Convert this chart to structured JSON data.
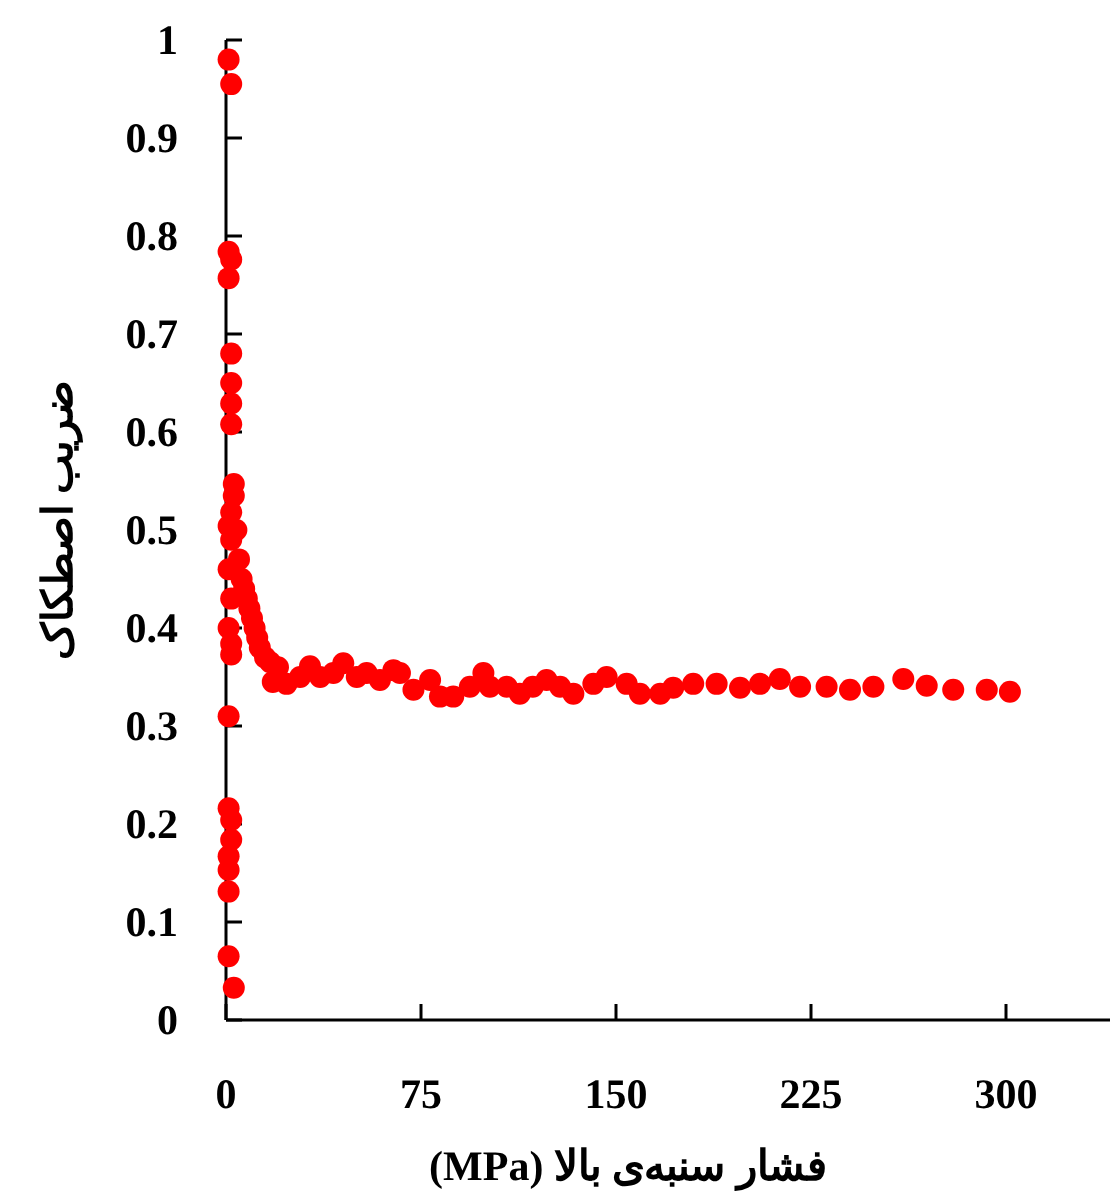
{
  "chart_data": {
    "type": "scatter",
    "xlabel": "فشار سنبه‌ی بالا (MPa)",
    "ylabel": "ضریب اصطکاک",
    "xlim": [
      0,
      340
    ],
    "ylim": [
      0,
      1
    ],
    "xticks": [
      0,
      75,
      150,
      225,
      300
    ],
    "yticks": [
      0,
      0.1,
      0.2,
      0.3,
      0.4,
      0.5,
      0.6,
      0.7,
      0.8,
      0.9,
      1
    ],
    "grid": false,
    "marker": "circle",
    "series": [
      {
        "color": "#ff0000",
        "x": [
          1,
          2,
          1,
          2,
          1,
          2,
          2,
          2,
          2,
          3,
          3,
          2,
          1,
          2,
          1,
          2,
          1,
          2,
          2,
          1,
          1,
          2,
          2,
          1,
          1,
          1,
          1,
          3,
          4,
          5,
          6,
          7,
          8,
          9,
          10,
          11,
          12,
          13,
          15,
          17,
          18,
          20,
          23.3,
          28.5,
          32.3,
          36.2,
          41.3,
          45.1,
          50.3,
          54.1,
          59.2,
          64.4,
          66.9,
          72.1,
          78.5,
          82.3,
          87.4,
          93.8,
          99,
          101.5,
          108,
          113,
          118,
          123.3,
          128.5,
          133.6,
          141.3,
          146.4,
          154.1,
          159.2,
          167,
          172,
          179.7,
          188.7,
          197.7,
          205.4,
          213,
          220.8,
          231,
          240,
          249,
          260.5,
          269.5,
          279.7,
          292.6,
          301.5
        ],
        "values": [
          0.98,
          0.955,
          0.784,
          0.776,
          0.757,
          0.68,
          0.65,
          0.629,
          0.608,
          0.547,
          0.535,
          0.518,
          0.504,
          0.49,
          0.46,
          0.43,
          0.4,
          0.384,
          0.373,
          0.31,
          0.216,
          0.204,
          0.184,
          0.167,
          0.153,
          0.131,
          0.065,
          0.033,
          0.5,
          0.47,
          0.45,
          0.44,
          0.43,
          0.42,
          0.41,
          0.4,
          0.39,
          0.38,
          0.37,
          0.365,
          0.345,
          0.36,
          0.343,
          0.35,
          0.361,
          0.35,
          0.354,
          0.364,
          0.35,
          0.354,
          0.347,
          0.357,
          0.354,
          0.337,
          0.347,
          0.33,
          0.33,
          0.34,
          0.354,
          0.34,
          0.34,
          0.333,
          0.34,
          0.347,
          0.34,
          0.333,
          0.343,
          0.35,
          0.343,
          0.333,
          0.333,
          0.339,
          0.343,
          0.343,
          0.339,
          0.343,
          0.348,
          0.34,
          0.34,
          0.337,
          0.34,
          0.348,
          0.341,
          0.337,
          0.337,
          0.335
        ]
      }
    ]
  }
}
